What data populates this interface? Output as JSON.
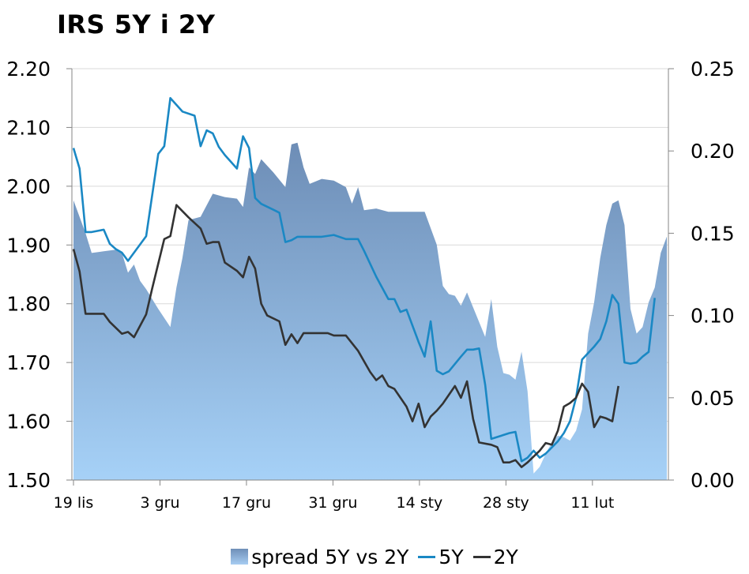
{
  "title": "IRS 5Y i 2Y",
  "colors": {
    "spread_top": "#6d8db6",
    "spread_bottom": "#a6d1f7",
    "line_5y": "#1a88c4",
    "line_2y": "#333333",
    "axis": "#868686",
    "grid": "#d9d9d9"
  },
  "legend": {
    "spread": "spread 5Y vs 2Y",
    "five": "5Y",
    "two": "2Y"
  },
  "chart_data": {
    "type": "line",
    "title": "IRS 5Y i 2Y",
    "x_tick_labels": [
      "19 lis",
      "3 gru",
      "17 gru",
      "31 gru",
      "14 sty",
      "28 sty",
      "11 lut"
    ],
    "x_tick_index": [
      0,
      14,
      28,
      42,
      56,
      70,
      84
    ],
    "x_count": 91,
    "y_left": {
      "min": 1.5,
      "max": 2.2,
      "ticks": [
        "2.20",
        "2.10",
        "2.00",
        "1.90",
        "1.80",
        "1.70",
        "1.60",
        "1.50"
      ]
    },
    "y_right": {
      "min": 0.0,
      "max": 0.25,
      "ticks": [
        "0.25",
        "0.20",
        "0.15",
        "0.10",
        "0.05",
        "0.00"
      ]
    },
    "series": [
      {
        "name": "spread 5Y vs 2Y",
        "type": "area",
        "axis": "right",
        "points": [
          [
            0,
            0.17
          ],
          [
            2,
            0.15
          ],
          [
            3,
            0.138
          ],
          [
            5,
            0.139
          ],
          [
            7,
            0.14
          ],
          [
            8,
            0.138
          ],
          [
            9,
            0.126
          ],
          [
            10,
            0.131
          ],
          [
            11,
            0.121
          ],
          [
            12,
            0.116
          ],
          [
            14,
            0.104
          ],
          [
            16,
            0.093
          ],
          [
            17,
            0.117
          ],
          [
            18,
            0.135
          ],
          [
            19,
            0.158
          ],
          [
            21,
            0.16
          ],
          [
            23,
            0.174
          ],
          [
            25,
            0.172
          ],
          [
            27,
            0.171
          ],
          [
            28,
            0.166
          ],
          [
            29,
            0.19
          ],
          [
            30,
            0.186
          ],
          [
            31,
            0.195
          ],
          [
            33,
            0.187
          ],
          [
            35,
            0.178
          ],
          [
            36,
            0.204
          ],
          [
            37,
            0.205
          ],
          [
            38,
            0.19
          ],
          [
            39,
            0.18
          ],
          [
            41,
            0.183
          ],
          [
            43,
            0.182
          ],
          [
            45,
            0.178
          ],
          [
            46,
            0.168
          ],
          [
            47,
            0.178
          ],
          [
            48,
            0.164
          ],
          [
            50,
            0.165
          ],
          [
            52,
            0.163
          ],
          [
            54,
            0.163
          ],
          [
            56,
            0.163
          ],
          [
            58,
            0.163
          ],
          [
            60,
            0.143
          ],
          [
            61,
            0.118
          ],
          [
            62,
            0.113
          ],
          [
            63,
            0.112
          ],
          [
            64,
            0.106
          ],
          [
            65,
            0.114
          ],
          [
            66,
            0.105
          ],
          [
            67,
            0.096
          ],
          [
            68,
            0.087
          ],
          [
            69,
            0.11
          ],
          [
            70,
            0.081
          ],
          [
            71,
            0.065
          ],
          [
            72,
            0.064
          ],
          [
            73,
            0.061
          ],
          [
            74,
            0.078
          ],
          [
            75,
            0.054
          ],
          [
            76,
            0.004
          ],
          [
            77,
            0.008
          ],
          [
            78,
            0.016
          ],
          [
            79,
            0.023
          ],
          [
            80,
            0.027
          ],
          [
            81,
            0.026
          ],
          [
            82,
            0.024
          ],
          [
            83,
            0.03
          ],
          [
            84,
            0.043
          ],
          [
            85,
            0.089
          ],
          [
            86,
            0.108
          ],
          [
            87,
            0.135
          ],
          [
            88,
            0.155
          ],
          [
            89,
            0.168
          ],
          [
            90,
            0.17
          ],
          [
            91,
            0.155
          ],
          [
            92,
            0.104
          ],
          [
            93,
            0.089
          ],
          [
            94,
            0.093
          ],
          [
            95,
            0.108
          ],
          [
            96,
            0.117
          ],
          [
            97,
            0.138
          ],
          [
            98,
            0.148
          ]
        ]
      },
      {
        "name": "5Y",
        "type": "line",
        "axis": "left",
        "points": [
          [
            0,
            2.065
          ],
          [
            1,
            2.03
          ],
          [
            2,
            1.922
          ],
          [
            3,
            1.922
          ],
          [
            5,
            1.926
          ],
          [
            6,
            1.902
          ],
          [
            7,
            1.893
          ],
          [
            8,
            1.887
          ],
          [
            9,
            1.873
          ],
          [
            12,
            1.915
          ],
          [
            14,
            2.055
          ],
          [
            15,
            2.068
          ],
          [
            16,
            2.15
          ],
          [
            18,
            2.127
          ],
          [
            20,
            2.12
          ],
          [
            21,
            2.068
          ],
          [
            22,
            2.095
          ],
          [
            23,
            2.09
          ],
          [
            24,
            2.067
          ],
          [
            25,
            2.053
          ],
          [
            27,
            2.03
          ],
          [
            28,
            2.085
          ],
          [
            29,
            2.065
          ],
          [
            30,
            1.98
          ],
          [
            31,
            1.97
          ],
          [
            33,
            1.96
          ],
          [
            34,
            1.955
          ],
          [
            35,
            1.905
          ],
          [
            36,
            1.908
          ],
          [
            37,
            1.914
          ],
          [
            39,
            1.914
          ],
          [
            41,
            1.914
          ],
          [
            43,
            1.917
          ],
          [
            45,
            1.91
          ],
          [
            47,
            1.91
          ],
          [
            48,
            1.89
          ],
          [
            50,
            1.846
          ],
          [
            52,
            1.808
          ],
          [
            53,
            1.808
          ],
          [
            54,
            1.786
          ],
          [
            55,
            1.79
          ],
          [
            57,
            1.735
          ],
          [
            58,
            1.71
          ],
          [
            59,
            1.77
          ],
          [
            60,
            1.686
          ],
          [
            61,
            1.68
          ],
          [
            62,
            1.685
          ],
          [
            64,
            1.71
          ],
          [
            65,
            1.722
          ],
          [
            66,
            1.722
          ],
          [
            67,
            1.724
          ],
          [
            68,
            1.662
          ],
          [
            69,
            1.57
          ],
          [
            72,
            1.58
          ],
          [
            73,
            1.582
          ],
          [
            74,
            1.532
          ],
          [
            75,
            1.538
          ],
          [
            76,
            1.55
          ],
          [
            77,
            1.538
          ],
          [
            78,
            1.545
          ],
          [
            80,
            1.566
          ],
          [
            81,
            1.58
          ],
          [
            82,
            1.6
          ],
          [
            83,
            1.64
          ],
          [
            84,
            1.705
          ],
          [
            86,
            1.727
          ],
          [
            87,
            1.74
          ],
          [
            88,
            1.77
          ],
          [
            89,
            1.815
          ],
          [
            90,
            1.8
          ],
          [
            91,
            1.7
          ],
          [
            92,
            1.698
          ],
          [
            93,
            1.7
          ],
          [
            94,
            1.71
          ],
          [
            95,
            1.718
          ],
          [
            96,
            1.81
          ]
        ]
      },
      {
        "name": "2Y",
        "type": "line",
        "axis": "left",
        "points": [
          [
            0,
            1.893
          ],
          [
            1,
            1.855
          ],
          [
            2,
            1.783
          ],
          [
            3,
            1.783
          ],
          [
            5,
            1.783
          ],
          [
            6,
            1.769
          ],
          [
            7,
            1.759
          ],
          [
            8,
            1.749
          ],
          [
            9,
            1.752
          ],
          [
            10,
            1.743
          ],
          [
            12,
            1.782
          ],
          [
            13,
            1.826
          ],
          [
            15,
            1.91
          ],
          [
            16,
            1.915
          ],
          [
            17,
            1.968
          ],
          [
            19,
            1.947
          ],
          [
            21,
            1.928
          ],
          [
            22,
            1.902
          ],
          [
            23,
            1.905
          ],
          [
            24,
            1.905
          ],
          [
            25,
            1.87
          ],
          [
            27,
            1.856
          ],
          [
            28,
            1.845
          ],
          [
            29,
            1.88
          ],
          [
            30,
            1.86
          ],
          [
            31,
            1.8
          ],
          [
            32,
            1.78
          ],
          [
            34,
            1.77
          ],
          [
            35,
            1.73
          ],
          [
            36,
            1.748
          ],
          [
            37,
            1.733
          ],
          [
            38,
            1.75
          ],
          [
            41,
            1.75
          ],
          [
            42,
            1.75
          ],
          [
            43,
            1.746
          ],
          [
            45,
            1.746
          ],
          [
            47,
            1.72
          ],
          [
            49,
            1.684
          ],
          [
            50,
            1.67
          ],
          [
            51,
            1.678
          ],
          [
            52,
            1.66
          ],
          [
            53,
            1.655
          ],
          [
            55,
            1.625
          ],
          [
            56,
            1.6
          ],
          [
            57,
            1.63
          ],
          [
            58,
            1.59
          ],
          [
            59,
            1.608
          ],
          [
            60,
            1.618
          ],
          [
            61,
            1.63
          ],
          [
            62,
            1.645
          ],
          [
            63,
            1.66
          ],
          [
            64,
            1.64
          ],
          [
            65,
            1.668
          ],
          [
            66,
            1.604
          ],
          [
            67,
            1.564
          ],
          [
            69,
            1.56
          ],
          [
            70,
            1.556
          ],
          [
            71,
            1.53
          ],
          [
            72,
            1.53
          ],
          [
            73,
            1.534
          ],
          [
            74,
            1.522
          ],
          [
            75,
            1.53
          ],
          [
            77,
            1.55
          ],
          [
            78,
            1.563
          ],
          [
            79,
            1.56
          ],
          [
            80,
            1.584
          ],
          [
            81,
            1.625
          ],
          [
            82,
            1.631
          ],
          [
            83,
            1.64
          ],
          [
            84,
            1.664
          ],
          [
            85,
            1.65
          ],
          [
            86,
            1.59
          ],
          [
            87,
            1.608
          ],
          [
            88,
            1.605
          ],
          [
            89,
            1.6
          ],
          [
            90,
            1.66
          ]
        ]
      }
    ]
  }
}
